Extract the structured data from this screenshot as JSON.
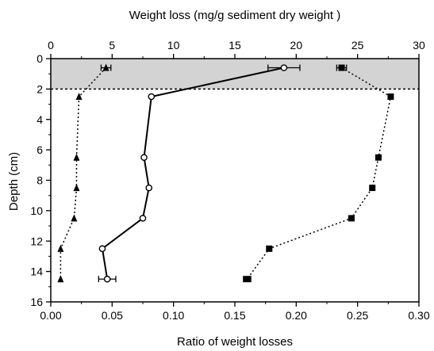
{
  "chart_data": {
    "type": "scatter",
    "top_axis": {
      "label": "Weight loss (mg/g sediment dry weight )",
      "range": [
        0,
        30
      ],
      "ticks": [
        "0",
        "5",
        "10",
        "15",
        "20",
        "25",
        "30"
      ]
    },
    "bottom_axis": {
      "label": "Ratio of weight losses",
      "range": [
        0,
        0.3
      ],
      "ticks": [
        "0.00",
        "0.05",
        "0.10",
        "0.15",
        "0.20",
        "0.25",
        "0.30"
      ]
    },
    "y_axis": {
      "label": "Depth (cm)",
      "range": [
        0,
        16
      ],
      "inverted": true,
      "ticks": [
        "0",
        "2",
        "4",
        "6",
        "8",
        "10",
        "12",
        "14",
        "16"
      ]
    },
    "shaded_band": {
      "from_depth": 0,
      "to_depth": 2,
      "color": "#d3d3d3"
    },
    "series": [
      {
        "axis": "bottom",
        "marker": "circle",
        "line": "solid",
        "points": [
          {
            "x": 0.19,
            "y": 0.6,
            "err": 0.013
          },
          {
            "x": 0.082,
            "y": 2.5
          },
          {
            "x": 0.076,
            "y": 6.5
          },
          {
            "x": 0.08,
            "y": 8.5
          },
          {
            "x": 0.075,
            "y": 10.5
          },
          {
            "x": 0.042,
            "y": 12.5
          },
          {
            "x": 0.046,
            "y": 14.5,
            "err": 0.007
          }
        ]
      },
      {
        "axis": "top",
        "marker": "triangle",
        "line": "dotted",
        "points": [
          {
            "x": 4.5,
            "y": 0.6,
            "err": 0.4
          },
          {
            "x": 2.3,
            "y": 2.5
          },
          {
            "x": 2.1,
            "y": 6.5
          },
          {
            "x": 2.1,
            "y": 8.5
          },
          {
            "x": 1.9,
            "y": 10.5
          },
          {
            "x": 0.8,
            "y": 12.5
          },
          {
            "x": 0.8,
            "y": 14.5
          }
        ]
      },
      {
        "axis": "top",
        "marker": "square",
        "line": "dotted",
        "points": [
          {
            "x": 23.7,
            "y": 0.6,
            "err": 0.4
          },
          {
            "x": 27.7,
            "y": 2.5
          },
          {
            "x": 26.7,
            "y": 6.5
          },
          {
            "x": 26.2,
            "y": 8.5
          },
          {
            "x": 24.5,
            "y": 10.5
          },
          {
            "x": 17.8,
            "y": 12.5
          },
          {
            "x": 16.0,
            "y": 14.5,
            "err": 0.3
          }
        ]
      }
    ],
    "boundary_line": {
      "depth": 2,
      "style": "dotted"
    },
    "grid": false
  }
}
